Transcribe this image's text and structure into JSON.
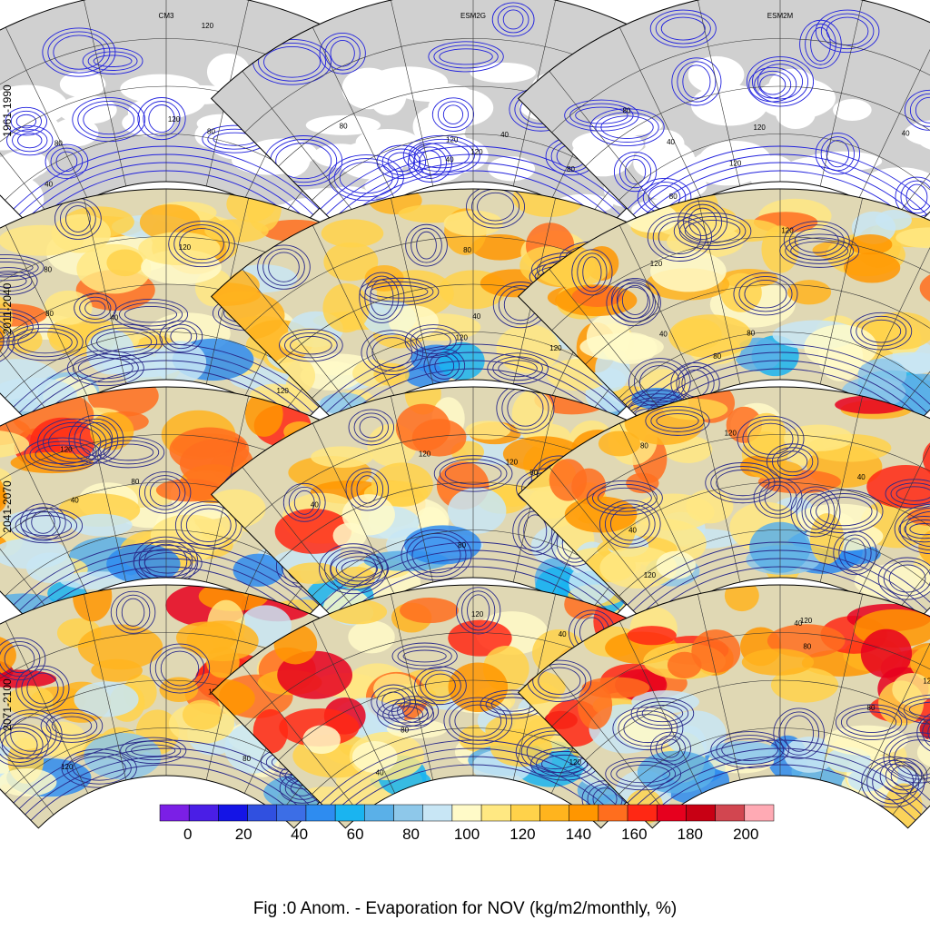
{
  "figure": {
    "caption": "Fig :0  Anom.  - Evaporation for NOV (kg/m2/monthly, %)"
  },
  "chart_data": {
    "type": "heatmap",
    "title": "Fig :0  Anom.  - Evaporation for NOV (kg/m2/monthly, %)",
    "columns": [
      "CM3",
      "ESM2G",
      "ESM2M"
    ],
    "rows": [
      "1961-1990",
      "2011-2040",
      "2041-2070",
      "2071-2100"
    ],
    "colorbar": {
      "tick_labels": [
        "0",
        "20",
        "40",
        "60",
        "80",
        "100",
        "120",
        "140",
        "160",
        "180",
        "200"
      ],
      "tick_values": [
        0,
        20,
        40,
        60,
        80,
        100,
        120,
        140,
        160,
        180,
        200
      ],
      "range": [
        -10,
        210
      ],
      "colors": [
        "#7b1fe6",
        "#4a1ee6",
        "#1414e6",
        "#3050e0",
        "#3c6ee6",
        "#2e8cf0",
        "#1ab4f0",
        "#5ab0e8",
        "#8ec8ea",
        "#c8e6f5",
        "#fffac8",
        "#ffe882",
        "#ffd24a",
        "#ffb41e",
        "#ff9600",
        "#ff6e1e",
        "#ff2814",
        "#e6001e",
        "#c80014",
        "#d24650",
        "#ffaab4"
      ]
    },
    "contour_labels": [
      "40",
      "80",
      "120"
    ],
    "panels": [
      {
        "row": "1961-1990",
        "column": "CM3",
        "filled": false
      },
      {
        "row": "1961-1990",
        "column": "ESM2G",
        "filled": false
      },
      {
        "row": "1961-1990",
        "column": "ESM2M",
        "filled": false
      },
      {
        "row": "2011-2040",
        "column": "CM3",
        "filled": true,
        "high_fraction": 0.35
      },
      {
        "row": "2011-2040",
        "column": "ESM2G",
        "filled": true,
        "high_fraction": 0.25
      },
      {
        "row": "2011-2040",
        "column": "ESM2M",
        "filled": true,
        "high_fraction": 0.3
      },
      {
        "row": "2041-2070",
        "column": "CM3",
        "filled": true,
        "high_fraction": 0.5
      },
      {
        "row": "2041-2070",
        "column": "ESM2G",
        "filled": true,
        "high_fraction": 0.4
      },
      {
        "row": "2041-2070",
        "column": "ESM2M",
        "filled": true,
        "high_fraction": 0.55
      },
      {
        "row": "2071-2100",
        "column": "CM3",
        "filled": true,
        "high_fraction": 0.8
      },
      {
        "row": "2071-2100",
        "column": "ESM2G",
        "filled": true,
        "high_fraction": 0.7
      },
      {
        "row": "2071-2100",
        "column": "ESM2M",
        "filled": true,
        "high_fraction": 0.75
      }
    ]
  }
}
